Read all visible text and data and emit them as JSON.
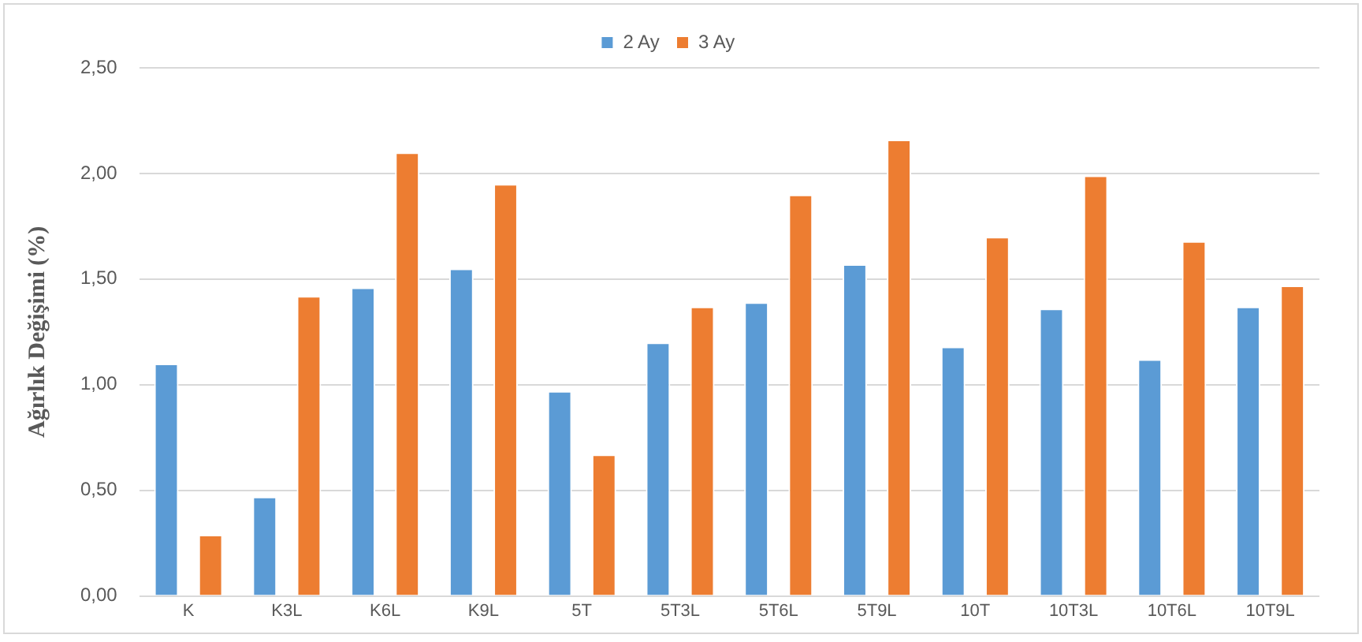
{
  "chart_data": {
    "type": "bar",
    "ylabel": "Ağırlık Değişimi (%)",
    "categories": [
      "K",
      "K3L",
      "K6L",
      "K9L",
      "5T",
      "5T3L",
      "5T6L",
      "5T9L",
      "10T",
      "10T3L",
      "10T6L",
      "10T9L"
    ],
    "series": [
      {
        "name": "2 Ay",
        "color": "#5b9bd5",
        "values": [
          1.1,
          0.47,
          1.46,
          1.55,
          0.97,
          1.2,
          1.39,
          1.57,
          1.18,
          1.36,
          1.12,
          1.37
        ]
      },
      {
        "name": "3 Ay",
        "color": "#ed7d31",
        "values": [
          0.29,
          1.42,
          2.1,
          1.95,
          0.67,
          1.37,
          1.9,
          2.16,
          1.7,
          1.99,
          1.68,
          1.47
        ]
      }
    ],
    "ylim": [
      0,
      2.5
    ],
    "yticks": [
      {
        "value": 0,
        "label": "0,00"
      },
      {
        "value": 0.5,
        "label": "0,50"
      },
      {
        "value": 1,
        "label": "1,00"
      },
      {
        "value": 1.5,
        "label": "1,50"
      },
      {
        "value": 2,
        "label": "2,00"
      },
      {
        "value": 2.5,
        "label": "2,50"
      }
    ],
    "grid": "y",
    "legend": "top"
  }
}
